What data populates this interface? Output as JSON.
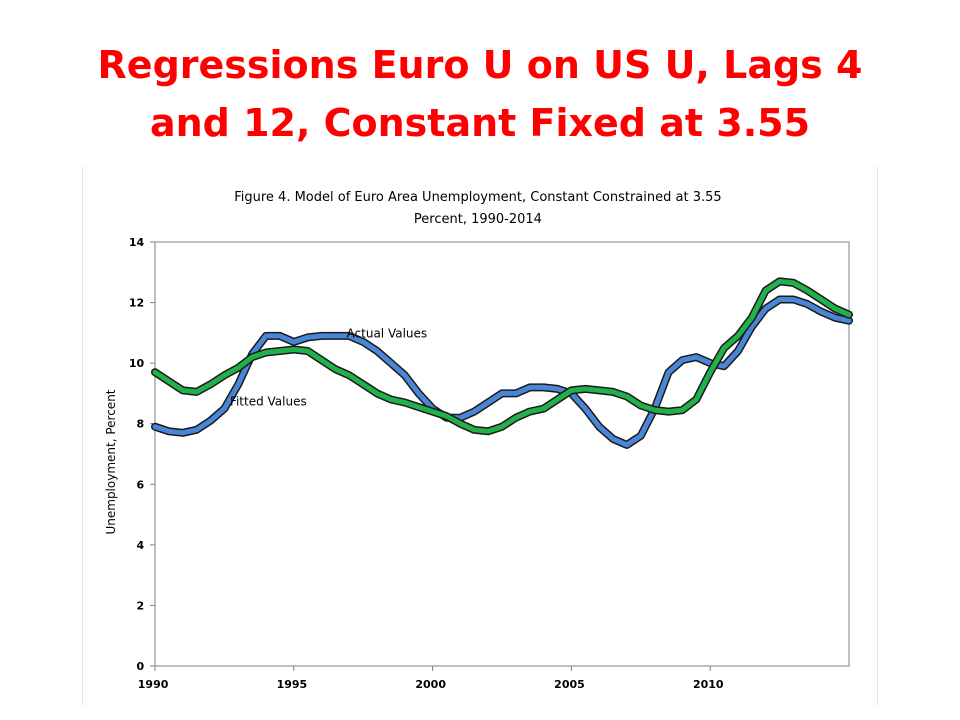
{
  "slide": {
    "title_line1": "Regressions Euro U on US U, Lags 4",
    "title_line2": "and 12, Constant Fixed at 3.55"
  },
  "colors": {
    "title": "#ff0000",
    "actual_fill": "#4a86d8",
    "fitted_fill": "#22b04a",
    "outline": "#1a1a1a"
  },
  "chart_data": {
    "type": "line",
    "title": "Figure 4. Model of Euro Area Unemployment, Constant Constrained at 3.55 ",
    "subtitle": "Percent, 1990-2014 ",
    "xlabel": "",
    "ylabel": "Unemployment, Percent",
    "xlim": [
      1990,
      2015
    ],
    "ylim": [
      0,
      14
    ],
    "x_ticks": [
      1990,
      1995,
      2000,
      2005,
      2010
    ],
    "x_tick_labels": [
      "1990",
      "1995",
      "2000",
      "2005",
      "2010"
    ],
    "y_ticks": [
      0,
      2,
      4,
      6,
      8,
      10,
      12,
      14
    ],
    "y_tick_labels": [
      "0",
      "2",
      "4",
      "6",
      "8",
      "10",
      "12",
      "14"
    ],
    "grid": false,
    "legend": "none",
    "annotations": [
      {
        "text": "Actual Values",
        "series": "Actual Values"
      },
      {
        "text": "Fitted Values",
        "series": "Fitted Values"
      }
    ],
    "series": [
      {
        "name": "Actual Values",
        "x": [
          1990,
          1990.5,
          1991,
          1991.5,
          1992,
          1992.5,
          1993,
          1993.5,
          1994,
          1994.5,
          1995,
          1995.5,
          1996,
          1996.5,
          1997,
          1997.5,
          1998,
          1998.5,
          1999,
          1999.5,
          2000,
          2000.5,
          2001,
          2001.5,
          2002,
          2002.5,
          2003,
          2003.5,
          2004,
          2004.5,
          2005,
          2005.5,
          2006,
          2006.5,
          2007,
          2007.5,
          2008,
          2008.5,
          2009,
          2009.5,
          2010,
          2010.5,
          2011,
          2011.5,
          2012,
          2012.5,
          2013,
          2013.5,
          2014,
          2014.5,
          2015
        ],
        "values": [
          7.9,
          7.75,
          7.7,
          7.8,
          8.1,
          8.5,
          9.3,
          10.3,
          10.9,
          10.9,
          10.7,
          10.85,
          10.9,
          10.9,
          10.9,
          10.7,
          10.4,
          10.0,
          9.6,
          9.0,
          8.5,
          8.2,
          8.2,
          8.4,
          8.7,
          9.0,
          9.0,
          9.2,
          9.2,
          9.15,
          9.0,
          8.5,
          7.9,
          7.5,
          7.3,
          7.6,
          8.5,
          9.7,
          10.1,
          10.2,
          10.0,
          9.9,
          10.4,
          11.2,
          11.8,
          12.1,
          12.1,
          11.95,
          11.7,
          11.5,
          11.4
        ]
      },
      {
        "name": "Fitted Values",
        "x": [
          1990,
          1990.5,
          1991,
          1991.5,
          1992,
          1992.5,
          1993,
          1993.5,
          1994,
          1994.5,
          1995,
          1995.5,
          1996,
          1996.5,
          1997,
          1997.5,
          1998,
          1998.5,
          1999,
          1999.5,
          2000,
          2000.5,
          2001,
          2001.5,
          2002,
          2002.5,
          2003,
          2003.5,
          2004,
          2004.5,
          2005,
          2005.5,
          2006,
          2006.5,
          2007,
          2007.5,
          2008,
          2008.5,
          2009,
          2009.5,
          2010,
          2010.5,
          2011,
          2011.5,
          2012,
          2012.5,
          2013,
          2013.5,
          2014,
          2014.5,
          2015
        ],
        "values": [
          9.7,
          9.4,
          9.1,
          9.05,
          9.3,
          9.6,
          9.85,
          10.2,
          10.35,
          10.4,
          10.45,
          10.4,
          10.1,
          9.8,
          9.6,
          9.3,
          9.0,
          8.8,
          8.7,
          8.55,
          8.4,
          8.25,
          8.0,
          7.8,
          7.75,
          7.9,
          8.2,
          8.4,
          8.5,
          8.8,
          9.1,
          9.15,
          9.1,
          9.05,
          8.9,
          8.6,
          8.45,
          8.4,
          8.45,
          8.8,
          9.7,
          10.5,
          10.9,
          11.5,
          12.4,
          12.7,
          12.65,
          12.4,
          12.1,
          11.8,
          11.6
        ]
      }
    ]
  }
}
